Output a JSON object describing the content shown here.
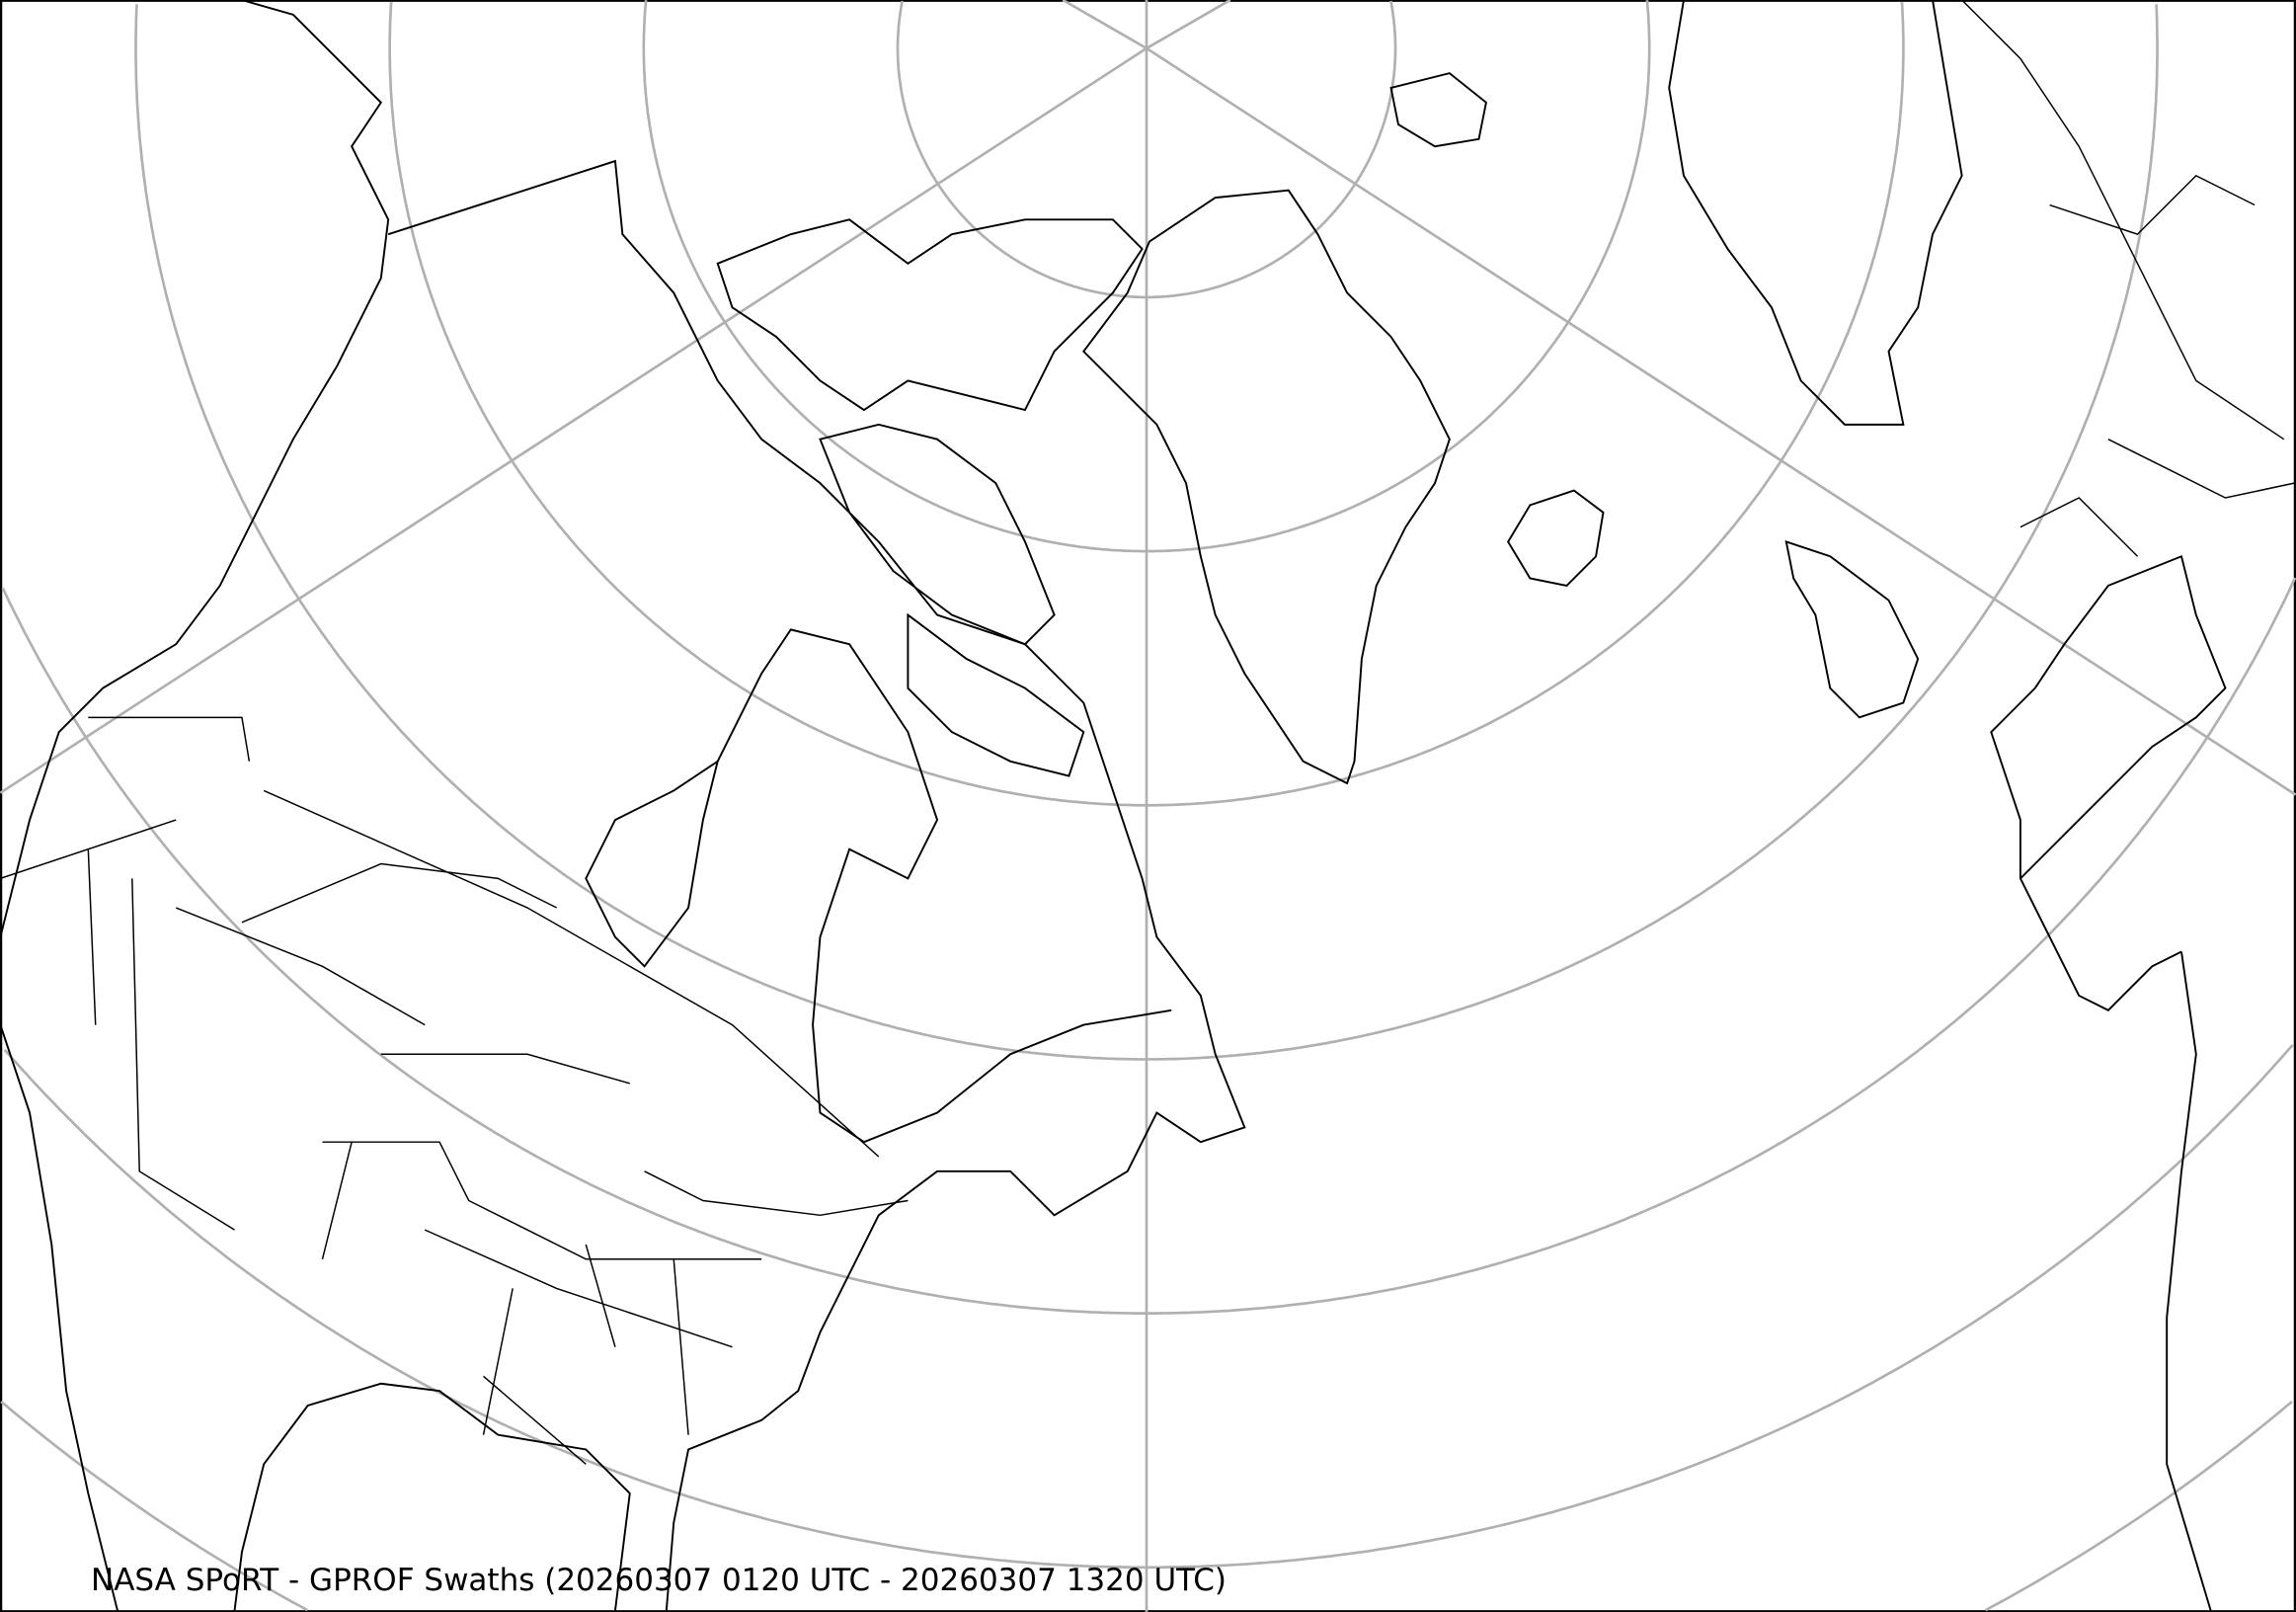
{
  "caption": "NASA SPoRT - GPROF Swaths (20260307 0120 UTC - 20260307 1320 UTC)",
  "map": {
    "projection": "polar stereographic (north)",
    "graticule_color": "#b0b0b0",
    "coastline_color": "#000000",
    "background_color": "#ffffff",
    "latitude_circles_deg": [
      80,
      70,
      60,
      50,
      40,
      30,
      20
    ],
    "regions_shown": [
      "North America",
      "Greenland",
      "Iceland",
      "Europe",
      "North Atlantic"
    ]
  }
}
